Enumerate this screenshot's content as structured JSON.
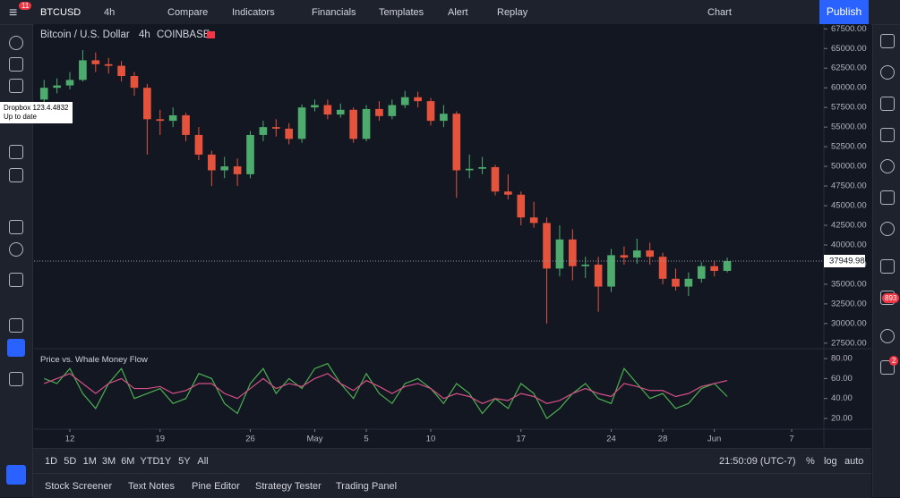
{
  "toolbar": {
    "symbol": "BTCUSD",
    "interval": "4h",
    "compare": "Compare",
    "indicators": "Indicators",
    "financials": "Financials",
    "templates": "Templates",
    "alert": "Alert",
    "replay": "Replay",
    "layout": "Chart",
    "publish": "Publish",
    "badge": "11"
  },
  "tooltip": {
    "title": "Dropbox 123.4.4832",
    "status": "Up to date"
  },
  "legend": {
    "name": "Bitcoin / U.S. Dollar",
    "interval": "4h",
    "exchange": "COINBASE"
  },
  "chart_data": {
    "type": "candlestick",
    "up_color": "#4dab6d",
    "down_color": "#e5533d",
    "grid": false,
    "xlim": [
      -0.78,
      60.5
    ],
    "xticks": [
      {
        "value": 2,
        "label": "12"
      },
      {
        "value": 9,
        "label": "19"
      },
      {
        "value": 16,
        "label": "26"
      },
      {
        "value": 21,
        "label": "May"
      },
      {
        "value": 25,
        "label": "5"
      },
      {
        "value": 30,
        "label": "10"
      },
      {
        "value": 37,
        "label": "17"
      },
      {
        "value": 44,
        "label": "24"
      },
      {
        "value": 48,
        "label": "28"
      },
      {
        "value": 52,
        "label": "Jun"
      },
      {
        "value": 58,
        "label": "7"
      }
    ],
    "ylim": [
      26800,
      68100
    ],
    "yticks": [
      {
        "value": 67500,
        "label": "67500.00"
      },
      {
        "value": 65000,
        "label": "65000.00"
      },
      {
        "value": 62500,
        "label": "62500.00"
      },
      {
        "value": 60000,
        "label": "60000.00"
      },
      {
        "value": 57500,
        "label": "57500.00"
      },
      {
        "value": 55000,
        "label": "55000.00"
      },
      {
        "value": 52500,
        "label": "52500.00"
      },
      {
        "value": 50000,
        "label": "50000.00"
      },
      {
        "value": 47500,
        "label": "47500.00"
      },
      {
        "value": 45000,
        "label": "45000.00"
      },
      {
        "value": 42500,
        "label": "42500.00"
      },
      {
        "value": 40000,
        "label": "40000.00"
      },
      {
        "value": 37500,
        "label": "37500.00"
      },
      {
        "value": 35000,
        "label": "35000.00"
      },
      {
        "value": 32500,
        "label": "32500.00"
      },
      {
        "value": 30000,
        "label": "30000.00"
      },
      {
        "value": 27500,
        "label": "27500.00"
      }
    ],
    "open": [
      58500,
      60000,
      60300,
      61000,
      63500,
      63000,
      62800,
      61500,
      60000,
      56000,
      55800,
      56500,
      54000,
      51500,
      49500,
      50000,
      49000,
      54000,
      55000,
      54800,
      53500,
      57500,
      57800,
      56600,
      57200,
      53500,
      57300,
      56400,
      57800,
      58800,
      58300,
      55800,
      56700,
      49500,
      49700,
      49900,
      46800,
      46400,
      43500,
      42800,
      37000,
      40700,
      37300,
      37500,
      34700,
      38700,
      38400,
      39300,
      38500,
      35700,
      34700,
      35700,
      37300,
      36700
    ],
    "high": [
      61000,
      61200,
      62000,
      64800,
      64500,
      63800,
      63400,
      62000,
      60500,
      57200,
      57500,
      56800,
      55000,
      52000,
      51200,
      51000,
      54500,
      55800,
      56000,
      55500,
      57900,
      58500,
      58500,
      58000,
      57500,
      57800,
      58300,
      58500,
      59600,
      59500,
      58700,
      57800,
      57000,
      51500,
      51200,
      50200,
      49000,
      46800,
      45500,
      43500,
      42500,
      42000,
      38500,
      38500,
      39500,
      39800,
      40800,
      40300,
      39000,
      37000,
      36500,
      37800,
      38000,
      38400
    ],
    "low": [
      57800,
      59300,
      59800,
      60800,
      62000,
      61800,
      60800,
      59000,
      51500,
      54000,
      55000,
      53200,
      50800,
      47500,
      48500,
      47500,
      48500,
      53200,
      53800,
      52800,
      53000,
      57000,
      56000,
      56200,
      53000,
      53200,
      55800,
      56000,
      57400,
      57500,
      55200,
      55000,
      46000,
      48500,
      49000,
      46300,
      45800,
      42500,
      42200,
      30000,
      36000,
      35500,
      35800,
      31500,
      34000,
      37500,
      37600,
      37500,
      35000,
      34200,
      33500,
      35200,
      36000,
      36500
    ],
    "close": [
      60000,
      60300,
      61000,
      63500,
      63000,
      62800,
      61500,
      60000,
      56000,
      55800,
      56500,
      54000,
      51500,
      49500,
      50000,
      49000,
      54000,
      55000,
      54800,
      53500,
      57500,
      57800,
      56600,
      57200,
      53500,
      57300,
      56400,
      57800,
      58800,
      58300,
      55800,
      56700,
      49500,
      49700,
      49900,
      46800,
      46400,
      43500,
      42800,
      37000,
      40700,
      37300,
      37500,
      34700,
      38700,
      38400,
      39300,
      38500,
      35700,
      34700,
      35700,
      37300,
      36700,
      37949.98
    ],
    "last_price": 37949.98,
    "indicator": {
      "title": "Price vs. Whale Money Flow",
      "ylim": [
        9.3,
        89.9
      ],
      "yticks": [
        {
          "value": 80,
          "label": "80.00"
        },
        {
          "value": 60,
          "label": "60.00"
        },
        {
          "value": 40,
          "label": "40.00"
        },
        {
          "value": 20,
          "label": "20.00"
        }
      ],
      "series": [
        {
          "color": "#4caf50",
          "values": [
            60,
            55,
            70,
            45,
            30,
            55,
            70,
            40,
            45,
            50,
            35,
            40,
            65,
            60,
            35,
            25,
            55,
            70,
            45,
            60,
            50,
            70,
            75,
            55,
            40,
            65,
            45,
            35,
            55,
            60,
            50,
            35,
            55,
            45,
            25,
            40,
            30,
            55,
            45,
            20,
            30,
            45,
            55,
            40,
            35,
            70,
            55,
            40,
            45,
            30,
            35,
            50,
            55,
            42
          ]
        },
        {
          "color": "#d64f84",
          "values": [
            55,
            60,
            65,
            55,
            45,
            55,
            60,
            50,
            50,
            52,
            45,
            48,
            55,
            55,
            45,
            40,
            50,
            60,
            50,
            55,
            52,
            60,
            65,
            55,
            48,
            58,
            52,
            45,
            52,
            55,
            50,
            40,
            45,
            42,
            35,
            40,
            38,
            45,
            42,
            35,
            38,
            45,
            50,
            45,
            42,
            55,
            52,
            48,
            48,
            42,
            45,
            52,
            55,
            58
          ]
        }
      ]
    }
  },
  "ranges": [
    "1D",
    "5D",
    "1M",
    "3M",
    "6M",
    "YTD",
    "1Y",
    "5Y",
    "All"
  ],
  "status": {
    "time": "21:50:09 (UTC-7)",
    "percent": "%",
    "log": "log",
    "auto": "auto"
  },
  "tabs": [
    "Stock Screener",
    "Text Notes",
    "Pine Editor",
    "Strategy Tester",
    "Trading Panel"
  ],
  "side_badges": [
    "893",
    "2"
  ]
}
